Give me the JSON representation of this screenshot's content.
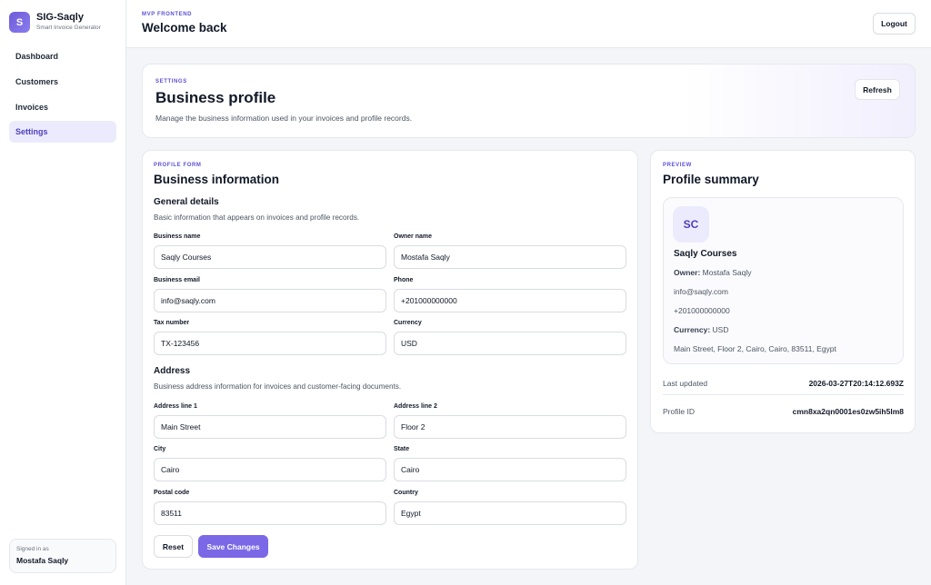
{
  "brand": {
    "logo_letter": "S",
    "name": "SIG-Saqly",
    "subtitle": "Smart Invoice Generator"
  },
  "nav": [
    {
      "label": "Dashboard",
      "active": false
    },
    {
      "label": "Customers",
      "active": false
    },
    {
      "label": "Invoices",
      "active": false
    },
    {
      "label": "Settings",
      "active": true
    }
  ],
  "signed_in": {
    "label": "Signed in as",
    "name": "Mostafa Saqly"
  },
  "topbar": {
    "eyebrow": "MVP FRONTEND",
    "title": "Welcome back",
    "logout_label": "Logout"
  },
  "hero": {
    "eyebrow": "SETTINGS",
    "title": "Business profile",
    "description": "Manage the business information used in your invoices and profile records.",
    "refresh_label": "Refresh"
  },
  "form": {
    "eyebrow": "PROFILE FORM",
    "title": "Business information",
    "general": {
      "title": "General details",
      "description": "Basic information that appears on invoices and profile records.",
      "business_name": {
        "label": "Business name",
        "value": "Saqly Courses"
      },
      "owner_name": {
        "label": "Owner name",
        "value": "Mostafa Saqly"
      },
      "business_email": {
        "label": "Business email",
        "value": "info@saqly.com"
      },
      "phone": {
        "label": "Phone",
        "value": "+201000000000"
      },
      "tax_number": {
        "label": "Tax number",
        "value": "TX-123456"
      },
      "currency": {
        "label": "Currency",
        "value": "USD"
      }
    },
    "address": {
      "title": "Address",
      "description": "Business address information for invoices and customer-facing documents.",
      "line1": {
        "label": "Address line 1",
        "value": "Main Street"
      },
      "line2": {
        "label": "Address line 2",
        "value": "Floor 2"
      },
      "city": {
        "label": "City",
        "value": "Cairo"
      },
      "state": {
        "label": "State",
        "value": "Cairo"
      },
      "postal_code": {
        "label": "Postal code",
        "value": "83511"
      },
      "country": {
        "label": "Country",
        "value": "Egypt"
      }
    },
    "reset_label": "Reset",
    "save_label": "Save Changes"
  },
  "preview": {
    "eyebrow": "PREVIEW",
    "title": "Profile summary",
    "initials": "SC",
    "business_name": "Saqly Courses",
    "owner_label": "Owner:",
    "owner_value": "Mostafa Saqly",
    "email": "info@saqly.com",
    "phone": "+201000000000",
    "currency_label": "Currency:",
    "currency_value": "USD",
    "address": "Main Street, Floor 2, Cairo, Cairo, 83511, Egypt",
    "last_updated_label": "Last updated",
    "last_updated_value": "2026-03-27T20:14:12.693Z",
    "profile_id_label": "Profile ID",
    "profile_id_value": "cmn8xa2qn0001es0zw5ih5lm8"
  },
  "colors": {
    "accent": "#7a68e6",
    "accent_soft": "#ecebfd",
    "eyebrow": "#5b4fd6"
  }
}
